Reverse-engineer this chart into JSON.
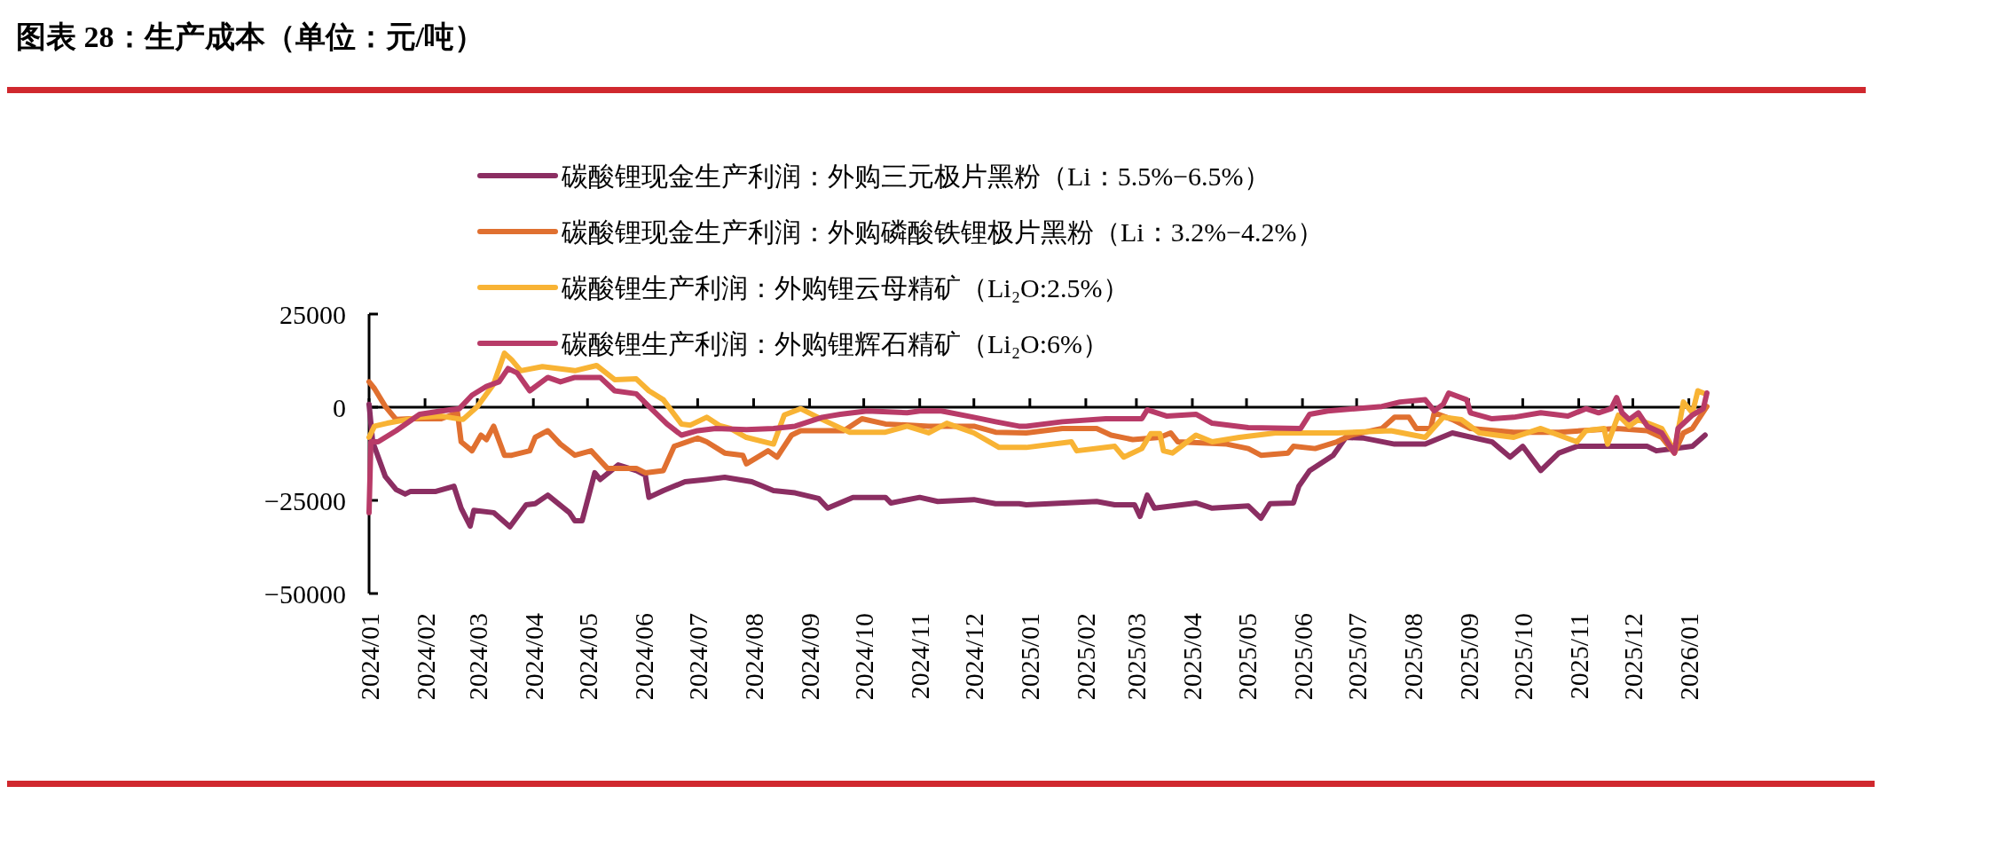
{
  "chart_data": {
    "type": "line",
    "title": "图表 28：生产成本（单位：元/吨）",
    "legend": "top",
    "xlim": [
      "2024-01-01",
      "2026-01-12"
    ],
    "xticks": [
      {
        "value": "2024-01-01",
        "label": "2024/01"
      },
      {
        "value": "2024-02-01",
        "label": "2024/02"
      },
      {
        "value": "2024-03-01",
        "label": "2024/03"
      },
      {
        "value": "2024-04-01",
        "label": "2024/04"
      },
      {
        "value": "2024-05-01",
        "label": "2024/05"
      },
      {
        "value": "2024-06-01",
        "label": "2024/06"
      },
      {
        "value": "2024-07-01",
        "label": "2024/07"
      },
      {
        "value": "2024-08-01",
        "label": "2024/08"
      },
      {
        "value": "2024-09-01",
        "label": "2024/09"
      },
      {
        "value": "2024-10-01",
        "label": "2024/10"
      },
      {
        "value": "2024-11-01",
        "label": "2024/11"
      },
      {
        "value": "2024-12-01",
        "label": "2024/12"
      },
      {
        "value": "2025-01-01",
        "label": "2025/01"
      },
      {
        "value": "2025-02-01",
        "label": "2025/02"
      },
      {
        "value": "2025-03-01",
        "label": "2025/03"
      },
      {
        "value": "2025-04-01",
        "label": "2025/04"
      },
      {
        "value": "2025-05-01",
        "label": "2025/05"
      },
      {
        "value": "2025-06-01",
        "label": "2025/06"
      },
      {
        "value": "2025-07-01",
        "label": "2025/07"
      },
      {
        "value": "2025-08-01",
        "label": "2025/08"
      },
      {
        "value": "2025-09-01",
        "label": "2025/09"
      },
      {
        "value": "2025-10-01",
        "label": "2025/10"
      },
      {
        "value": "2025-11-01",
        "label": "2025/11"
      },
      {
        "value": "2025-12-01",
        "label": "2025/12"
      },
      {
        "value": "2026-01-01",
        "label": "2026/01"
      }
    ],
    "ylim": [
      -50000,
      25000
    ],
    "yticks": [
      {
        "value": -50000,
        "label": "−50000"
      },
      {
        "value": -25000,
        "label": "−25000"
      },
      0,
      25000
    ],
    "series": [
      {
        "name": "碳酸锂现金生产利润：外购三元极片黑粉（Li：5.5%−6.5%）",
        "color": "#8b2e62",
        "x": [
          "2024-01-01",
          "2024-01-03",
          "2024-01-10",
          "2024-01-16",
          "2024-01-21",
          "2024-01-24",
          "2024-02-07",
          "2024-02-17",
          "2024-02-21",
          "2024-02-26",
          "2024-02-28",
          "2024-03-10",
          "2024-03-19",
          "2024-03-28",
          "2024-04-02",
          "2024-04-09",
          "2024-04-21",
          "2024-04-24",
          "2024-04-28",
          "2024-05-05",
          "2024-05-08",
          "2024-05-18",
          "2024-05-28",
          "2024-06-02",
          "2024-06-04",
          "2024-06-12",
          "2024-06-24",
          "2024-07-06",
          "2024-07-16",
          "2024-07-31",
          "2024-08-12",
          "2024-08-24",
          "2024-09-06",
          "2024-09-11",
          "2024-09-25",
          "2024-10-13",
          "2024-10-16",
          "2024-11-01",
          "2024-11-11",
          "2024-12-01",
          "2024-12-13",
          "2024-12-26",
          "2024-12-30",
          "2025-02-07",
          "2025-02-17",
          "2025-02-28",
          "2025-03-03",
          "2025-03-07",
          "2025-03-11",
          "2025-04-03",
          "2025-04-12",
          "2025-05-02",
          "2025-05-09",
          "2025-05-14",
          "2025-05-27",
          "2025-05-30",
          "2025-06-05",
          "2025-06-18",
          "2025-06-25",
          "2025-07-05",
          "2025-07-22",
          "2025-08-08",
          "2025-08-23",
          "2025-09-14",
          "2025-09-24",
          "2025-10-01",
          "2025-10-11",
          "2025-10-21",
          "2025-10-31",
          "2025-11-15",
          "2025-12-09",
          "2025-12-14",
          "2026-01-03",
          "2026-01-10"
        ],
        "values": [
          800,
          -9300,
          -18600,
          -22100,
          -23300,
          -22600,
          -22600,
          -21200,
          -27100,
          -31900,
          -27700,
          -28300,
          -32100,
          -26200,
          -25900,
          -23600,
          -28300,
          -30500,
          -30500,
          -17600,
          -19400,
          -15500,
          -17000,
          -18200,
          -24200,
          -22400,
          -20000,
          -19400,
          -18800,
          -20000,
          -22400,
          -23000,
          -24500,
          -27100,
          -24200,
          -24200,
          -25700,
          -24200,
          -25300,
          -24800,
          -25900,
          -25900,
          -26200,
          -25300,
          -26200,
          -26200,
          -29300,
          -23600,
          -27100,
          -25700,
          -27100,
          -26500,
          -29800,
          -25900,
          -25700,
          -21200,
          -17000,
          -12900,
          -8100,
          -8300,
          -9900,
          -9900,
          -6900,
          -9300,
          -13400,
          -10500,
          -17000,
          -12300,
          -10500,
          -10500,
          -10500,
          -11700,
          -10500,
          -7500
        ]
      },
      {
        "name": "碳酸锂现金生产利润：外购磷酸铁锂极片黑粉（Li：3.2%−4.2%）",
        "color": "#e07030",
        "x": [
          "2024-01-01",
          "2024-01-04",
          "2024-01-10",
          "2024-01-16",
          "2024-01-24",
          "2024-02-10",
          "2024-02-19",
          "2024-02-21",
          "2024-02-27",
          "2024-03-03",
          "2024-03-06",
          "2024-03-10",
          "2024-03-16",
          "2024-03-20",
          "2024-03-30",
          "2024-04-02",
          "2024-04-09",
          "2024-04-16",
          "2024-04-24",
          "2024-05-03",
          "2024-05-12",
          "2024-05-28",
          "2024-06-02",
          "2024-06-12",
          "2024-06-18",
          "2024-07-01",
          "2024-07-06",
          "2024-07-16",
          "2024-07-26",
          "2024-07-28",
          "2024-08-09",
          "2024-08-14",
          "2024-08-22",
          "2024-08-27",
          "2024-09-20",
          "2024-09-30",
          "2024-10-13",
          "2024-11-06",
          "2024-12-01",
          "2024-12-13",
          "2024-12-30",
          "2025-01-19",
          "2025-02-07",
          "2025-02-15",
          "2025-02-27",
          "2025-03-14",
          "2025-03-20",
          "2025-03-24",
          "2025-04-20",
          "2025-05-02",
          "2025-05-09",
          "2025-05-24",
          "2025-05-27",
          "2025-06-08",
          "2025-06-20",
          "2025-06-28",
          "2025-07-15",
          "2025-07-22",
          "2025-07-30",
          "2025-08-03",
          "2025-08-11",
          "2025-08-13",
          "2025-08-23",
          "2025-09-02",
          "2025-09-26",
          "2025-10-21",
          "2025-11-22",
          "2025-12-09",
          "2025-12-17",
          "2025-12-24",
          "2025-12-29",
          "2026-01-03",
          "2026-01-11"
        ],
        "values": [
          6800,
          5000,
          200,
          -3300,
          -3100,
          -3100,
          -1500,
          -9300,
          -11700,
          -7500,
          -8700,
          -5100,
          -12900,
          -12900,
          -11700,
          -8100,
          -6300,
          -9900,
          -12900,
          -11700,
          -16400,
          -16400,
          -17600,
          -17000,
          -10500,
          -8300,
          -9300,
          -12300,
          -12900,
          -15200,
          -11700,
          -13400,
          -7500,
          -6300,
          -6300,
          -3100,
          -4500,
          -5100,
          -5100,
          -6700,
          -6900,
          -5700,
          -5700,
          -7500,
          -8700,
          -8100,
          -6900,
          -9300,
          -9900,
          -11100,
          -12900,
          -12300,
          -10500,
          -11100,
          -9300,
          -7500,
          -5700,
          -2700,
          -2700,
          -5700,
          -5700,
          -1500,
          -3300,
          -5700,
          -6700,
          -6700,
          -5700,
          -6300,
          -8100,
          -12300,
          -6900,
          -5700,
          200
        ]
      },
      {
        "name": "碳酸锂生产利润：外购锂云母精矿（Li₂O:2.5%）",
        "color": "#f8b334",
        "x": [
          "2024-01-01",
          "2024-01-04",
          "2024-01-11",
          "2024-01-29",
          "2024-02-10",
          "2024-02-22",
          "2024-03-01",
          "2024-03-10",
          "2024-03-16",
          "2024-03-20",
          "2024-03-25",
          "2024-04-06",
          "2024-04-24",
          "2024-05-06",
          "2024-05-16",
          "2024-05-28",
          "2024-06-04",
          "2024-06-12",
          "2024-06-22",
          "2024-06-27",
          "2024-07-06",
          "2024-07-13",
          "2024-07-19",
          "2024-07-28",
          "2024-08-07",
          "2024-08-12",
          "2024-08-18",
          "2024-08-27",
          "2024-09-08",
          "2024-09-23",
          "2024-10-13",
          "2024-10-25",
          "2024-11-06",
          "2024-11-16",
          "2024-12-01",
          "2024-12-15",
          "2024-12-30",
          "2025-01-24",
          "2025-01-27",
          "2025-02-17",
          "2025-02-22",
          "2025-03-04",
          "2025-03-09",
          "2025-03-14",
          "2025-03-16",
          "2025-03-21",
          "2025-04-03",
          "2025-04-12",
          "2025-04-27",
          "2025-05-17",
          "2025-06-20",
          "2025-07-20",
          "2025-08-08",
          "2025-08-18",
          "2025-08-28",
          "2025-09-07",
          "2025-09-26",
          "2025-10-11",
          "2025-10-21",
          "2025-10-31",
          "2025-11-05",
          "2025-11-15",
          "2025-11-17",
          "2025-11-23",
          "2025-11-29",
          "2025-12-04",
          "2025-12-17",
          "2025-12-24",
          "2025-12-29",
          "2026-01-03",
          "2026-01-06",
          "2026-01-09"
        ],
        "values": [
          -8100,
          -5100,
          -4300,
          -2700,
          -2400,
          -3300,
          200,
          6200,
          14500,
          12700,
          9800,
          10900,
          9800,
          11200,
          7400,
          7600,
          4400,
          2000,
          -4500,
          -4800,
          -2700,
          -4900,
          -5700,
          -8100,
          -9300,
          -9900,
          -2100,
          -400,
          -3300,
          -6700,
          -6700,
          -5100,
          -6900,
          -4300,
          -6900,
          -10800,
          -10800,
          -9300,
          -11700,
          -10500,
          -13400,
          -11100,
          -7100,
          -7100,
          -11700,
          -12300,
          -7500,
          -9300,
          -8100,
          -6900,
          -6900,
          -6300,
          -8100,
          -2700,
          -3300,
          -6900,
          -8100,
          -5700,
          -7500,
          -9300,
          -6300,
          -5700,
          -9900,
          -2100,
          -5100,
          -3300,
          -5700,
          -11700,
          1400,
          -1500,
          4400,
          3800
        ]
      },
      {
        "name": "碳酸锂生产利润：外购锂辉石精矿（Li₂O:6%）",
        "color": "#b83b68",
        "x": [
          "2024-01-01",
          "2024-01-02",
          "2024-01-06",
          "2024-01-16",
          "2024-01-29",
          "2024-02-10",
          "2024-02-20",
          "2024-02-27",
          "2024-03-06",
          "2024-03-13",
          "2024-03-18",
          "2024-03-23",
          "2024-03-30",
          "2024-04-09",
          "2024-04-16",
          "2024-04-24",
          "2024-05-08",
          "2024-05-16",
          "2024-05-28",
          "2024-06-04",
          "2024-06-14",
          "2024-06-22",
          "2024-07-01",
          "2024-07-11",
          "2024-07-28",
          "2024-08-12",
          "2024-08-24",
          "2024-09-08",
          "2024-09-18",
          "2024-10-03",
          "2024-10-25",
          "2024-11-01",
          "2024-11-13",
          "2024-12-01",
          "2024-12-13",
          "2024-12-26",
          "2024-12-30",
          "2025-01-19",
          "2025-02-12",
          "2025-03-04",
          "2025-03-07",
          "2025-03-18",
          "2025-04-03",
          "2025-04-12",
          "2025-05-02",
          "2025-05-31",
          "2025-06-05",
          "2025-06-15",
          "2025-06-30",
          "2025-07-15",
          "2025-07-25",
          "2025-08-08",
          "2025-08-13",
          "2025-08-18",
          "2025-08-21",
          "2025-08-31",
          "2025-09-02",
          "2025-09-14",
          "2025-09-26",
          "2025-10-11",
          "2025-10-26",
          "2025-11-05",
          "2025-11-12",
          "2025-11-19",
          "2025-11-22",
          "2025-11-25",
          "2025-11-29",
          "2025-12-04",
          "2025-12-09",
          "2025-12-17",
          "2025-12-24",
          "2025-12-26",
          "2026-01-03",
          "2026-01-09",
          "2026-01-11"
        ],
        "values": [
          -28300,
          -9300,
          -9300,
          -6300,
          -1900,
          -1000,
          -400,
          3200,
          5600,
          6800,
          10400,
          9200,
          4400,
          8000,
          6800,
          8000,
          8000,
          4400,
          3600,
          200,
          -4500,
          -7500,
          -6300,
          -5700,
          -6000,
          -5700,
          -5100,
          -2700,
          -1900,
          -1000,
          -1500,
          -1000,
          -1000,
          -2700,
          -3900,
          -5100,
          -5100,
          -3900,
          -3100,
          -3100,
          -700,
          -2400,
          -1900,
          -4300,
          -5500,
          -5700,
          -1900,
          -1000,
          -400,
          200,
          1400,
          2000,
          -1000,
          800,
          3800,
          2000,
          -1500,
          -3100,
          -2700,
          -1500,
          -2400,
          -400,
          -1500,
          -400,
          2600,
          -1500,
          -3300,
          -1500,
          -5100,
          -6900,
          -12300,
          -5700,
          -2100,
          -400,
          3800
        ]
      }
    ]
  }
}
